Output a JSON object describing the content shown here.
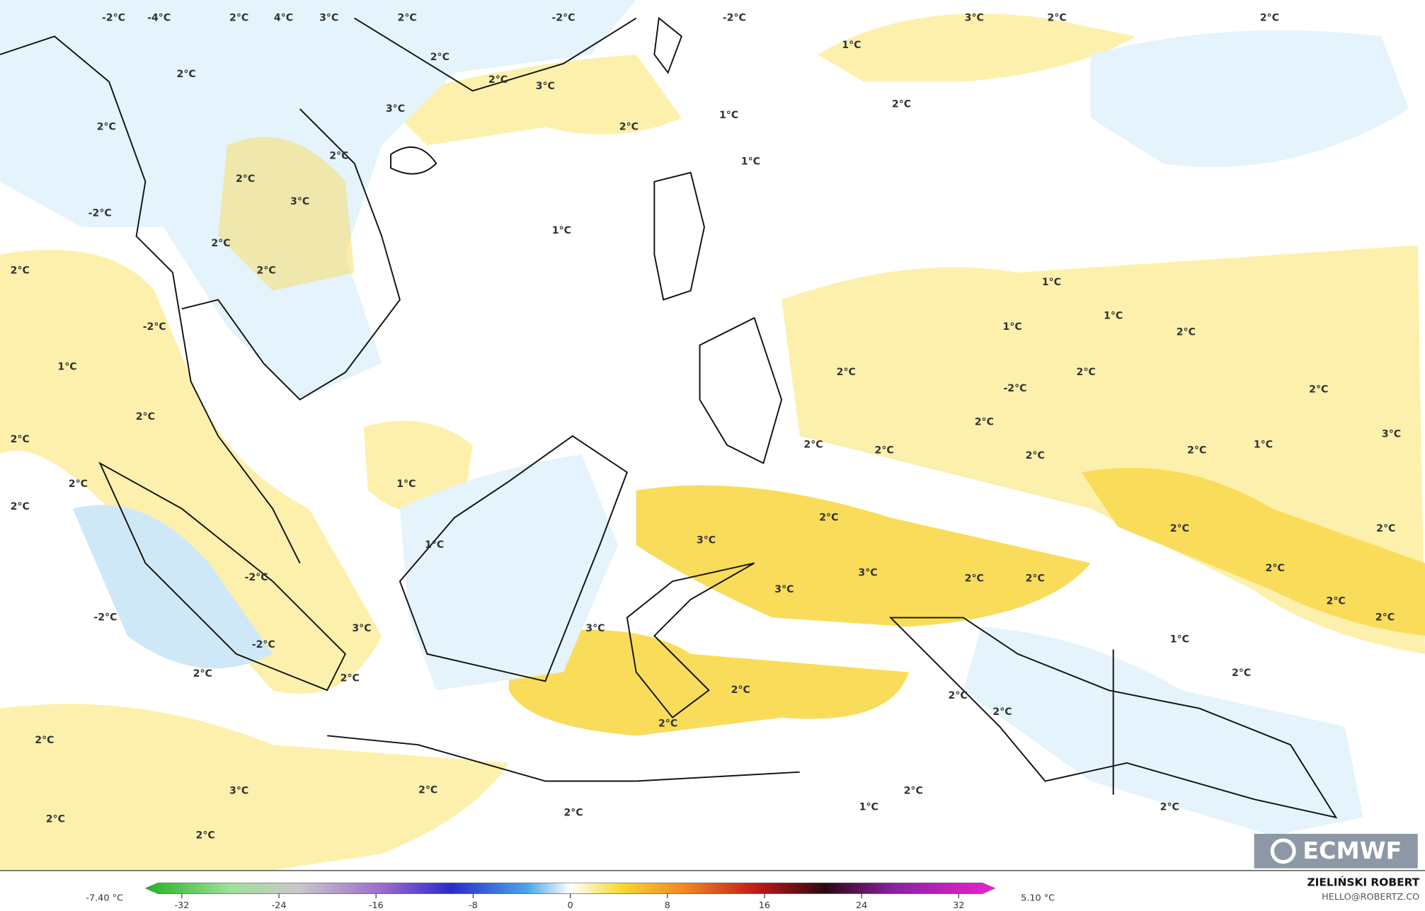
{
  "map": {
    "labels": [
      "-2°C",
      "-4°C",
      "2°C",
      "4°C",
      "3°C",
      "2°C",
      "-2°C",
      "-2°C",
      "3°C",
      "2°C",
      "2°C",
      "1°C",
      "2°C",
      "3°C",
      "2°C",
      "3°C",
      "2°C",
      "1°C",
      "2°C",
      "2°C",
      "2°C",
      "1°C",
      "2°C",
      "3°C",
      "-2°C",
      "1°C",
      "2°C",
      "2°C",
      "2°C",
      "1°C",
      "1°C",
      "1°C",
      "2°C",
      "-2°C",
      "1°C",
      "2°C",
      "2°C",
      "-2°C",
      "2°C",
      "2°C",
      "2°C",
      "2°C",
      "2°C",
      "2°C",
      "2°C",
      "1°C",
      "2°C",
      "3°C",
      "2°C",
      "1°C",
      "2°C",
      "2°C",
      "2°C",
      "2°C",
      "3°C",
      "1°C",
      "3°C",
      "2°C",
      "2°C",
      "2°C",
      "-2°C",
      "3°C",
      "2°C",
      "-2°C",
      "2°C",
      "3°C",
      "3°C",
      "1°C",
      "-2°C",
      "2°C",
      "2°C",
      "2°C",
      "2°C",
      "2°C",
      "2°C",
      "2°C",
      "2°C",
      "3°C",
      "2°C",
      "2°C",
      "1°C",
      "2°C",
      "2°C",
      "2°C",
      "2°C",
      "2°C"
    ],
    "colorbar": {
      "min_label": "-7.40 °C",
      "max_label": "5.10 °C",
      "lim": [
        -35,
        35
      ],
      "ticks": [
        -32,
        -24,
        -16,
        -8,
        0,
        8,
        16,
        24,
        32
      ]
    },
    "credit": {
      "author": "ZIELIŃSKI ROBERT",
      "contact": "HELLO@ROBERTZ.CO"
    },
    "logo": "ECMWF"
  }
}
